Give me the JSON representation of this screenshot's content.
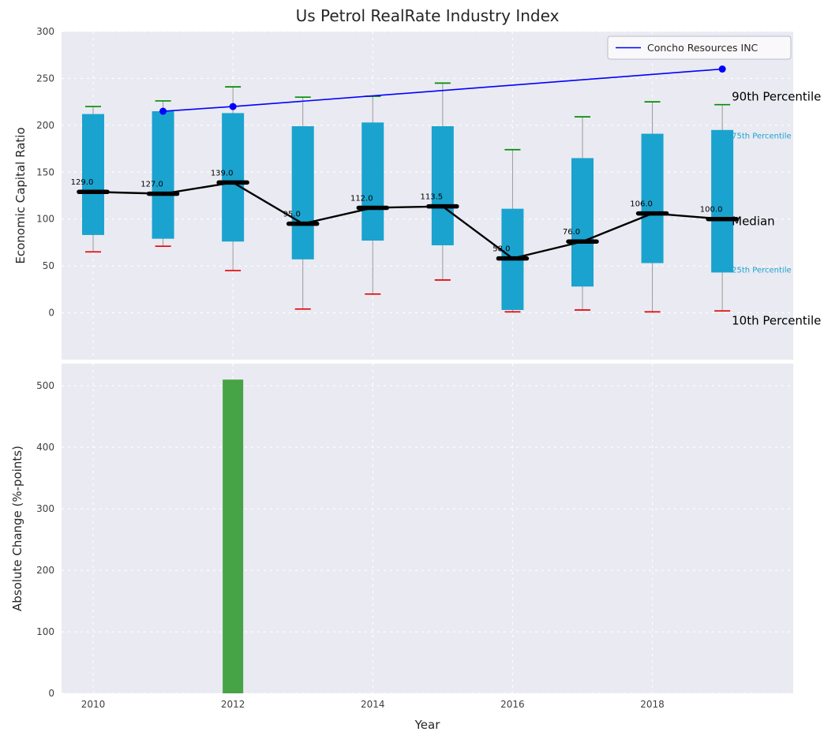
{
  "figure": {
    "title": "Us Petrol RealRate Industry Index",
    "background": "#ffffff",
    "plot_background": "#eaeaf2",
    "grid_color": "#ffffff"
  },
  "chart_data": [
    {
      "type": "boxplot+line",
      "title": "Us Petrol RealRate Industry Index",
      "ylabel": "Economic Capital Ratio",
      "ylim": [
        -50,
        300
      ],
      "yticks": [
        0,
        50,
        100,
        150,
        200,
        250,
        300
      ],
      "x": [
        2010,
        2011,
        2012,
        2013,
        2014,
        2015,
        2016,
        2017,
        2018,
        2019
      ],
      "xticks": [
        2010,
        2012,
        2014,
        2016,
        2018
      ],
      "grid": true,
      "legend_position": "upper right",
      "colors": {
        "box": "#1aa3cf",
        "whisker": "#9a9a9a",
        "cap_top": "#008f00",
        "cap_bottom": "#e60000",
        "median": "#000000",
        "company": "#0000ff",
        "tick_text": "#3f3f3f"
      },
      "series": {
        "p90": [
          220,
          226,
          241,
          230,
          231,
          245,
          174,
          209,
          225,
          222
        ],
        "p75": [
          212,
          215,
          213,
          199,
          203,
          199,
          111,
          165,
          191,
          195
        ],
        "median": [
          129,
          127,
          139,
          95,
          112,
          113.5,
          58,
          76,
          106,
          100
        ],
        "p25": [
          83,
          79,
          76,
          57,
          77,
          72,
          3,
          28,
          53,
          43
        ],
        "p10": [
          65,
          71,
          45,
          4,
          20,
          35,
          1,
          3,
          1,
          2
        ]
      },
      "median_labels": [
        "129.0",
        "127.0",
        "139.0",
        "95.0",
        "112.0",
        "113.5",
        "58.0",
        "76.0",
        "106.0",
        "100.0"
      ],
      "company_line": {
        "name": "Concho Resources INC",
        "x": [
          2011,
          2012,
          2019
        ],
        "y": [
          215,
          220,
          260
        ]
      },
      "legend": {
        "label": "Concho Resources INC"
      },
      "right_annotations": [
        {
          "label": "90th Percentile",
          "value": 231,
          "color": "#000000",
          "size": 15
        },
        {
          "label": "75th Percentile",
          "value": 189,
          "color": "#1aa3cf",
          "size": 10
        },
        {
          "label": "Median",
          "value": 98,
          "color": "#000000",
          "size": 15
        },
        {
          "label": "25th Percentile",
          "value": 46,
          "color": "#1aa3cf",
          "size": 10
        },
        {
          "label": "10th Percentile",
          "value": -8,
          "color": "#000000",
          "size": 15
        }
      ]
    },
    {
      "type": "bar",
      "ylabel": "Absolute Change (%-points)",
      "xlabel": "Year",
      "ylim": [
        0,
        536
      ],
      "yticks": [
        0,
        100,
        200,
        300,
        400,
        500
      ],
      "x": [
        2010,
        2011,
        2012,
        2013,
        2014,
        2015,
        2016,
        2017,
        2018,
        2019
      ],
      "xticks": [
        2010,
        2012,
        2014,
        2016,
        2018
      ],
      "values": [
        0,
        0,
        510,
        0,
        0,
        0,
        0,
        0,
        0,
        0
      ],
      "bar_color": "#46a346"
    }
  ]
}
